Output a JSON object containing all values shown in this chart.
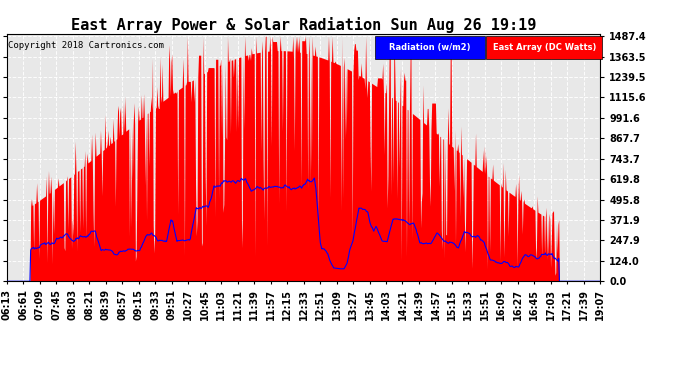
{
  "title": "East Array Power & Solar Radiation Sun Aug 26 19:19",
  "copyright": "Copyright 2018 Cartronics.com",
  "legend_labels": [
    "Radiation (w/m2)",
    "East Array (DC Watts)"
  ],
  "legend_colors": [
    "#0000ff",
    "#ff0000"
  ],
  "yticks": [
    0.0,
    124.0,
    247.9,
    371.9,
    495.8,
    619.8,
    743.7,
    867.7,
    991.6,
    1115.6,
    1239.5,
    1363.5,
    1487.4
  ],
  "ymax": 1487.4,
  "ymin": 0.0,
  "bg_color": "#ffffff",
  "plot_bg_color": "#e8e8e8",
  "grid_color": "#aaaaaa",
  "title_fontsize": 11,
  "tick_fontsize": 7,
  "xtick_labels": [
    "06:13",
    "06:61",
    "07:09",
    "07:45",
    "08:03",
    "08:21",
    "08:39",
    "08:57",
    "09:15",
    "09:33",
    "09:51",
    "10:27",
    "10:45",
    "11:03",
    "11:21",
    "11:39",
    "11:57",
    "12:15",
    "12:33",
    "12:51",
    "13:09",
    "13:27",
    "13:45",
    "14:03",
    "14:21",
    "14:39",
    "14:57",
    "15:15",
    "15:33",
    "15:51",
    "16:09",
    "16:27",
    "16:45",
    "17:03",
    "17:21",
    "17:39",
    "19:07"
  ]
}
